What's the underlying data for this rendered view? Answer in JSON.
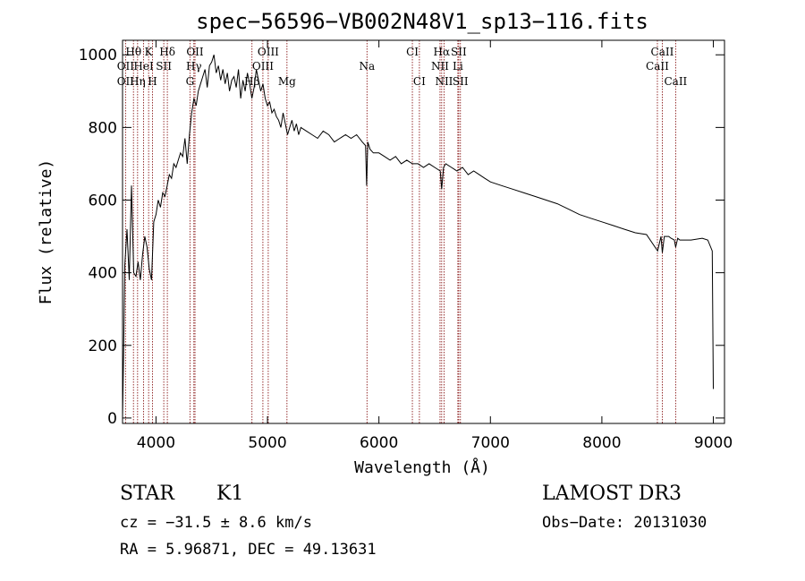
{
  "chart_data": {
    "type": "line",
    "title": "spec−56596−VB002N48V1_sp13−116.fits",
    "xlabel": "Wavelength (Å)",
    "ylabel": "Flux (relative)",
    "xlim": [
      3700,
      9100
    ],
    "ylim": [
      -15,
      1040
    ],
    "x_ticks": [
      4000,
      5000,
      6000,
      7000,
      8000,
      9000
    ],
    "y_ticks": [
      0,
      200,
      400,
      600,
      800,
      1000
    ],
    "grid": false,
    "line_color": "#000000",
    "marker_color": "#8b1a1a",
    "series": [
      {
        "x": [
          3700,
          3710,
          3720,
          3740,
          3760,
          3780,
          3800,
          3820,
          3840,
          3860,
          3880,
          3900,
          3920,
          3940,
          3960,
          3980,
          4000,
          4020,
          4040,
          4060,
          4080,
          4100,
          4120,
          4140,
          4160,
          4180,
          4200,
          4220,
          4240,
          4260,
          4280,
          4300,
          4320,
          4340,
          4360,
          4380,
          4400,
          4420,
          4440,
          4460,
          4480,
          4500,
          4520,
          4540,
          4560,
          4580,
          4600,
          4620,
          4640,
          4660,
          4680,
          4700,
          4720,
          4740,
          4760,
          4780,
          4800,
          4820,
          4840,
          4860,
          4880,
          4900,
          4920,
          4940,
          4960,
          4980,
          5000,
          5020,
          5040,
          5060,
          5080,
          5100,
          5120,
          5140,
          5160,
          5180,
          5200,
          5220,
          5240,
          5260,
          5280,
          5300,
          5350,
          5400,
          5450,
          5500,
          5550,
          5600,
          5650,
          5700,
          5750,
          5800,
          5850,
          5880,
          5890,
          5900,
          5920,
          5950,
          6000,
          6050,
          6100,
          6150,
          6200,
          6250,
          6300,
          6350,
          6400,
          6450,
          6500,
          6550,
          6563,
          6580,
          6600,
          6650,
          6700,
          6750,
          6800,
          6850,
          6900,
          6950,
          7000,
          7100,
          7200,
          7300,
          7400,
          7500,
          7600,
          7700,
          7800,
          7900,
          8000,
          8100,
          8200,
          8300,
          8400,
          8500,
          8530,
          8542,
          8560,
          8600,
          8620,
          8650,
          8662,
          8680,
          8700,
          8800,
          8900,
          8950,
          8990,
          9000
        ],
        "y": [
          0,
          180,
          420,
          520,
          380,
          640,
          400,
          390,
          430,
          380,
          450,
          500,
          470,
          410,
          380,
          540,
          560,
          600,
          580,
          620,
          610,
          640,
          670,
          660,
          700,
          690,
          710,
          730,
          720,
          770,
          700,
          780,
          840,
          880,
          860,
          900,
          920,
          940,
          960,
          910,
          970,
          980,
          1000,
          950,
          970,
          930,
          960,
          920,
          950,
          900,
          930,
          940,
          910,
          960,
          880,
          930,
          900,
          950,
          920,
          880,
          910,
          960,
          930,
          900,
          920,
          880,
          860,
          870,
          840,
          850,
          830,
          820,
          800,
          840,
          810,
          780,
          800,
          820,
          790,
          810,
          780,
          800,
          790,
          780,
          770,
          790,
          780,
          760,
          770,
          780,
          770,
          780,
          760,
          750,
          640,
          760,
          740,
          730,
          730,
          720,
          710,
          720,
          700,
          710,
          700,
          700,
          690,
          700,
          690,
          680,
          630,
          690,
          700,
          690,
          680,
          690,
          670,
          680,
          670,
          660,
          650,
          640,
          630,
          620,
          610,
          600,
          590,
          575,
          560,
          550,
          540,
          530,
          520,
          510,
          505,
          460,
          500,
          455,
          500,
          500,
          495,
          490,
          470,
          495,
          490,
          490,
          495,
          490,
          460,
          80
        ]
      }
    ],
    "spectral_lines": [
      {
        "label": "Hθ",
        "x": 3798,
        "row": 0
      },
      {
        "label": "K",
        "x": 3934,
        "row": 0
      },
      {
        "label": "Hδ",
        "x": 4102,
        "row": 0
      },
      {
        "label": "OII",
        "x": 3727,
        "row": 1
      },
      {
        "label": "HeI",
        "x": 3889,
        "row": 1
      },
      {
        "label": "SII",
        "x": 4070,
        "row": 1
      },
      {
        "label": "OII",
        "x": 3727,
        "row": 2
      },
      {
        "label": "Hη",
        "x": 3835,
        "row": 2
      },
      {
        "label": "H",
        "x": 3969,
        "row": 2
      },
      {
        "label": "OII",
        "x": 4350,
        "row": 0
      },
      {
        "label": "Hγ",
        "x": 4340,
        "row": 1
      },
      {
        "label": "G",
        "x": 4305,
        "row": 2
      },
      {
        "label": "OIII",
        "x": 5007,
        "row": 0
      },
      {
        "label": "OIII",
        "x": 4959,
        "row": 1
      },
      {
        "label": "Hβ",
        "x": 4861,
        "row": 2
      },
      {
        "label": "Mg",
        "x": 5175,
        "row": 2
      },
      {
        "label": "Na",
        "x": 5893,
        "row": 1
      },
      {
        "label": "CI",
        "x": 6300,
        "row": 0
      },
      {
        "label": "CI",
        "x": 6363,
        "row": 2
      },
      {
        "label": "Hα",
        "x": 6563,
        "row": 0
      },
      {
        "label": "SII",
        "x": 6716,
        "row": 0
      },
      {
        "label": "NII",
        "x": 6548,
        "row": 1
      },
      {
        "label": "Li",
        "x": 6708,
        "row": 1
      },
      {
        "label": "NII",
        "x": 6584,
        "row": 2
      },
      {
        "label": "SII",
        "x": 6731,
        "row": 2
      },
      {
        "label": "CaII",
        "x": 8542,
        "row": 0
      },
      {
        "label": "CaII",
        "x": 8498,
        "row": 1
      },
      {
        "label": "CaII",
        "x": 8662,
        "row": 2
      }
    ],
    "marker_lines_x": [
      3727,
      3798,
      3835,
      3889,
      3934,
      3969,
      4070,
      4102,
      4305,
      4340,
      4350,
      4861,
      4959,
      5007,
      5175,
      5893,
      6300,
      6363,
      6548,
      6563,
      6584,
      6708,
      6716,
      6731,
      8498,
      8542,
      8662
    ]
  },
  "footer": {
    "class_label": "STAR",
    "subclass_label": "K1",
    "survey": "LAMOST DR3",
    "cz": "cz = −31.5 ± 8.6 km/s",
    "obs_date": "Obs−Date: 20131030",
    "coords": "RA =   5.96871, DEC =  49.13631"
  }
}
